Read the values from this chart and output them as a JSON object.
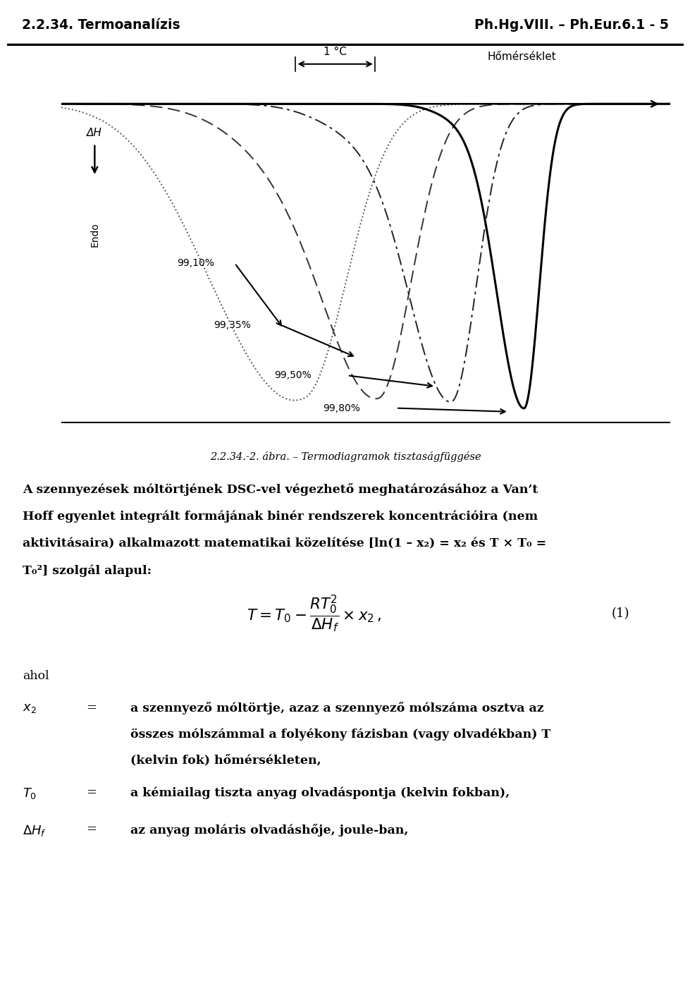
{
  "header_left": "2.2.34. Termoanalízis",
  "header_right": "Ph.Hg.VIII. – Ph.Eur.6.1 - 5",
  "figure_caption": "2.2.34.-2. ábra. – Termodiagramok tisztaságfüggése",
  "where_label": "ahol",
  "x2_label": "x₂",
  "x2_desc_1": "a szennyező móltörtje, azaz a szennyező mólszáma osztva az",
  "x2_desc_2": "összes mólszámmal a folyékony fázisban (vagy olvadékban) T",
  "x2_desc_3": "(kelvin fok) hőmérsékleten,",
  "T0_label": "T₀",
  "T0_desc": "a kémiailag tiszta anyag olvadáspontja (kelvin fokban),",
  "DH_label": "ΔHₑ",
  "DH_desc": "az anyag moláris olvadáshője, joule-ban,",
  "label_1C": "1 °C",
  "label_hom": "Hőmérséklet",
  "label_endoH": "ΔH",
  "label_endo": "Endo",
  "label_9910": "99,10%",
  "label_9935": "99,35%",
  "label_9950": "99,50%",
  "label_9980": "99,80%",
  "para_line1": "A szennyezések móltörtjének DSC-vel végezhető meghatározásához a Van’t",
  "para_line2": "Hoff egyenlet integrált formájának binér rendszerek koncentrációira (nem",
  "para_line3": "aktivitásaira) alkalmazott matematikai közelítése [ln(1 – x₂) = x₂ és T × T₀ =",
  "para_line4": "T₀²] szolgál alapul:",
  "bg_color": "#ffffff",
  "text_color": "#000000"
}
